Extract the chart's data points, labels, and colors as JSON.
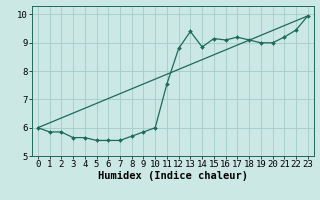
{
  "title": "",
  "xlabel": "Humidex (Indice chaleur)",
  "background_color": "#cce8e4",
  "grid_color": "#aacfca",
  "line_color": "#1a6b5a",
  "xlim": [
    -0.5,
    23.5
  ],
  "ylim": [
    5.0,
    10.3
  ],
  "yticks": [
    5,
    6,
    7,
    8,
    9,
    10
  ],
  "xticks": [
    0,
    1,
    2,
    3,
    4,
    5,
    6,
    7,
    8,
    9,
    10,
    11,
    12,
    13,
    14,
    15,
    16,
    17,
    18,
    19,
    20,
    21,
    22,
    23
  ],
  "series1_x": [
    0,
    1,
    2,
    3,
    4,
    5,
    6,
    7,
    8,
    9,
    10,
    11,
    12,
    13,
    14,
    15,
    16,
    17,
    18,
    19,
    20,
    21,
    22,
    23
  ],
  "series1_y": [
    6.0,
    5.85,
    5.85,
    5.65,
    5.65,
    5.55,
    5.55,
    5.55,
    5.7,
    5.85,
    6.0,
    7.55,
    8.8,
    9.4,
    8.85,
    9.15,
    9.1,
    9.2,
    9.1,
    9.0,
    9.0,
    9.2,
    9.45,
    9.95
  ],
  "series2_x": [
    0,
    23
  ],
  "series2_y": [
    6.0,
    9.95
  ],
  "font_family": "monospace",
  "tick_fontsize": 6.5,
  "label_fontsize": 7.5
}
